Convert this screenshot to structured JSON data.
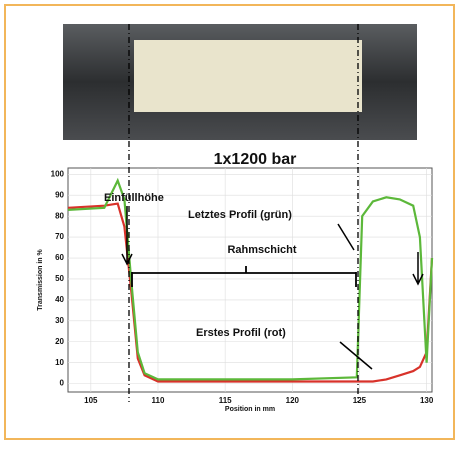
{
  "chart_data": {
    "type": "line",
    "title": "1x1200 bar",
    "x_label": "Position in mm",
    "y_label": "Transmission in %",
    "annotations": [
      "Einfüllhöhe",
      "Rahmschicht"
    ],
    "x": [
      103.3,
      106,
      107,
      107.5,
      108,
      108.5,
      109,
      110,
      115,
      120,
      124.8,
      125.2,
      126,
      127,
      128,
      129,
      129.5,
      130,
      130.4
    ],
    "series": [
      {
        "name": "Erstes Profil (rot)",
        "color": "#d8322a",
        "values": [
          84,
          85,
          86,
          75,
          45,
          12,
          4,
          1,
          1,
          1,
          1,
          1,
          1,
          2,
          4,
          6,
          8,
          15,
          60
        ]
      },
      {
        "name": "Letztes Profil (grün)",
        "color": "#5cb83a",
        "values": [
          83,
          84,
          97,
          88,
          50,
          15,
          5,
          2,
          2,
          2,
          3,
          80,
          87,
          89,
          88,
          85,
          70,
          10,
          60
        ]
      }
    ],
    "xlim": [
      103.3,
      130.4
    ],
    "ylim": [
      -4,
      103
    ],
    "xticks": [
      105,
      110,
      115,
      120,
      125,
      130
    ],
    "yticks": [
      0,
      10,
      20,
      30,
      40,
      50,
      60,
      70,
      80,
      90,
      100
    ],
    "grid": true
  }
}
